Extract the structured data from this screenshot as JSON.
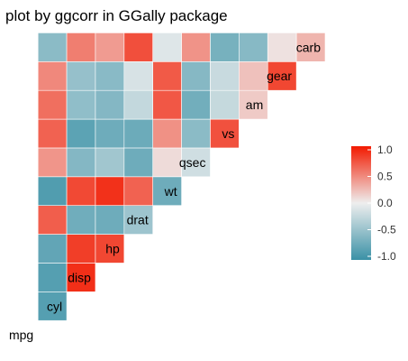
{
  "chart_data": {
    "type": "heatmap",
    "title": "plot by ggcorr in GGally package",
    "xlabel": "",
    "ylabel": "",
    "variables": [
      "mpg",
      "cyl",
      "disp",
      "hp",
      "drat",
      "wt",
      "qsec",
      "vs",
      "am",
      "gear",
      "carb"
    ],
    "matrix_layout": "lower-triangle; row i lists correlations of variables[i] with variables[0..i-1]",
    "correlations": [
      [],
      [
        -0.85
      ],
      [
        -0.85,
        0.9
      ],
      [
        -0.78,
        0.83,
        0.79
      ],
      [
        0.68,
        -0.7,
        -0.71,
        -0.45
      ],
      [
        -0.87,
        0.78,
        0.89,
        0.66,
        -0.71
      ],
      [
        0.42,
        -0.59,
        -0.43,
        -0.71,
        0.09,
        -0.17
      ],
      [
        0.66,
        -0.81,
        -0.71,
        -0.72,
        0.44,
        -0.55,
        0.74
      ],
      [
        0.6,
        -0.52,
        -0.59,
        -0.24,
        0.71,
        -0.69,
        -0.23,
        0.17
      ],
      [
        0.48,
        -0.49,
        -0.56,
        -0.13,
        0.7,
        -0.58,
        -0.21,
        0.21,
        0.79
      ],
      [
        -0.55,
        0.53,
        0.39,
        0.75,
        -0.09,
        0.43,
        -0.66,
        -0.57,
        0.06,
        0.27
      ]
    ],
    "legend": {
      "position": "right",
      "ticks": [
        "1.0",
        "0.5",
        "0.0",
        "-0.5",
        "-1.0"
      ],
      "range": [
        -1,
        1
      ]
    },
    "colors": {
      "low": "#3A91A6",
      "mid": "#EEEEEE",
      "high": "#F21A00"
    }
  }
}
